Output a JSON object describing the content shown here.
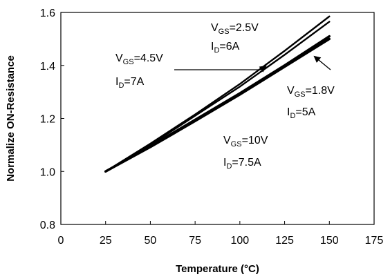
{
  "chart_data": {
    "type": "line",
    "xlabel": "Temperature (°C)",
    "ylabel": "Normalize ON-Resistance",
    "xlim": [
      0,
      175
    ],
    "ylim": [
      0.8,
      1.6
    ],
    "xticks": [
      0,
      25,
      50,
      75,
      100,
      125,
      150,
      175
    ],
    "yticks": [
      0.8,
      1.0,
      1.2,
      1.4,
      1.6
    ],
    "ytick_labels": [
      "0.8",
      "1.0",
      "1.2",
      "1.4",
      "1.6"
    ],
    "grid": false,
    "series": [
      {
        "label_main": "V",
        "label_sub": "GS",
        "label_value": "=2.5V",
        "id_main": "I",
        "id_sub": "D",
        "id_value": "=6A",
        "x": [
          25,
          50,
          75,
          100,
          125,
          150
        ],
        "y": [
          1.0,
          1.105,
          1.215,
          1.33,
          1.455,
          1.585
        ],
        "color": "#000000"
      },
      {
        "label_main": "V",
        "label_sub": "GS",
        "label_value": "=4.5V",
        "id_main": "I",
        "id_sub": "D",
        "id_value": "=7A",
        "x": [
          25,
          50,
          75,
          100,
          125,
          150
        ],
        "y": [
          1.0,
          1.1,
          1.21,
          1.32,
          1.44,
          1.565
        ],
        "color": "#000000"
      },
      {
        "label_main": "V",
        "label_sub": "GS",
        "label_value": "=1.8V",
        "id_main": "I",
        "id_sub": "D",
        "id_value": "=5A",
        "x": [
          25,
          50,
          75,
          100,
          125,
          150
        ],
        "y": [
          1.0,
          1.095,
          1.195,
          1.295,
          1.4,
          1.51
        ],
        "color": "#000000"
      },
      {
        "label_main": "V",
        "label_sub": "GS",
        "label_value": "=10V",
        "id_main": "I",
        "id_sub": "D",
        "id_value": "=7.5A",
        "x": [
          25,
          50,
          75,
          100,
          125,
          150
        ],
        "y": [
          1.0,
          1.092,
          1.19,
          1.29,
          1.395,
          1.5
        ],
        "color": "#000000"
      }
    ]
  }
}
